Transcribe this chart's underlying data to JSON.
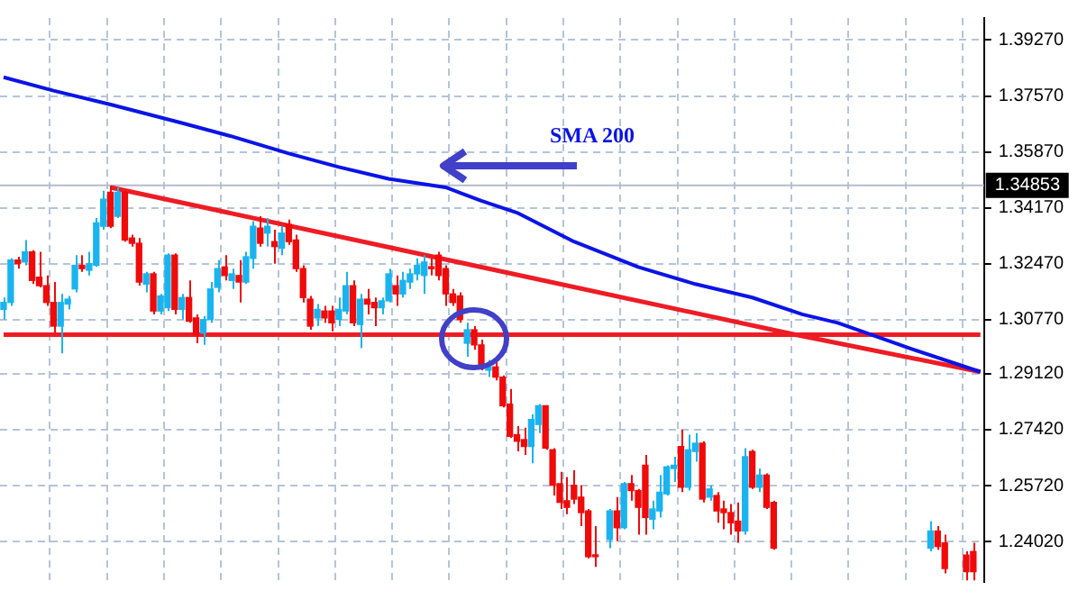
{
  "chart_data": {
    "type": "candlestick",
    "categories": [
      null,
      null,
      null,
      null,
      null,
      null,
      null,
      null,
      null,
      null,
      null,
      null,
      null,
      null,
      null,
      null,
      null,
      null,
      null,
      null,
      null,
      null,
      null,
      null,
      null,
      null,
      null,
      null,
      null,
      null,
      null,
      null,
      null,
      null,
      null,
      null,
      null,
      null,
      null,
      null,
      null,
      null,
      null,
      null,
      null,
      null,
      null,
      null,
      null,
      null,
      null,
      null,
      null,
      null,
      null,
      null,
      null,
      null,
      null,
      null,
      null,
      null,
      null,
      null,
      null,
      null,
      null,
      null,
      null,
      null,
      null,
      null,
      null,
      null,
      null,
      null,
      null,
      null,
      null,
      null,
      null,
      null,
      null,
      null,
      null,
      null,
      null,
      null,
      null,
      null,
      null,
      null,
      null,
      null,
      null,
      null,
      null,
      null,
      null,
      null,
      null,
      null,
      null,
      null,
      null,
      null,
      null,
      null,
      null,
      null,
      null,
      null,
      null,
      null,
      null,
      null,
      null,
      null,
      null,
      null,
      null,
      null,
      null,
      null,
      null,
      null,
      null,
      null,
      null,
      null,
      null,
      null,
      null,
      null,
      null,
      null,
      null,
      null
    ],
    "ohlc": [
      [
        1.3108,
        1.3144,
        1.3077,
        1.3129
      ],
      [
        1.3129,
        1.3263,
        1.3119,
        1.3258
      ],
      [
        1.3258,
        1.3268,
        1.3232,
        1.3247
      ],
      [
        1.3252,
        1.3319,
        1.3242,
        1.3283
      ],
      [
        1.3283,
        1.3288,
        1.3185,
        1.3196
      ],
      [
        1.3206,
        1.3283,
        1.3175,
        1.318
      ],
      [
        1.318,
        1.3211,
        1.3119,
        1.3129
      ],
      [
        1.3129,
        1.3191,
        1.3036,
        1.3057
      ],
      [
        1.3057,
        1.3155,
        1.2974,
        1.3129
      ],
      [
        1.3124,
        1.3149,
        1.3108,
        1.3139
      ],
      [
        1.317,
        1.3273,
        1.316,
        1.3242
      ],
      [
        1.3242,
        1.3273,
        1.3222,
        1.3232
      ],
      [
        1.3227,
        1.3283,
        1.3211,
        1.3247
      ],
      [
        1.3242,
        1.3386,
        1.3237,
        1.3371
      ],
      [
        1.3361,
        1.3469,
        1.335,
        1.3443
      ],
      [
        1.3464,
        1.3484,
        1.3355,
        1.3361
      ],
      [
        1.3391,
        1.3479,
        1.3386,
        1.3464
      ],
      [
        1.3464,
        1.3469,
        1.3314,
        1.3319
      ],
      [
        1.3325,
        1.3335,
        1.3299,
        1.3309
      ],
      [
        1.3309,
        1.3325,
        1.318,
        1.3191
      ],
      [
        1.3185,
        1.3222,
        1.316,
        1.3216
      ],
      [
        1.3216,
        1.3222,
        1.3093,
        1.3103
      ],
      [
        1.3103,
        1.3155,
        1.3093,
        1.3149
      ],
      [
        1.3113,
        1.3278,
        1.3103,
        1.3273
      ],
      [
        1.3273,
        1.3278,
        1.3093,
        1.3108
      ],
      [
        1.3108,
        1.3155,
        1.3077,
        1.3144
      ],
      [
        1.3144,
        1.3196,
        1.3067,
        1.3072
      ],
      [
        1.3082,
        1.3093,
        1.3005,
        1.3031
      ],
      [
        1.3036,
        1.3088,
        1.3,
        1.3077
      ],
      [
        1.3077,
        1.3191,
        1.3067,
        1.317
      ],
      [
        1.3175,
        1.3258,
        1.316,
        1.3232
      ],
      [
        1.3237,
        1.3273,
        1.3196,
        1.3211
      ],
      [
        1.3196,
        1.3232,
        1.317,
        1.3216
      ],
      [
        1.3211,
        1.3258,
        1.3129,
        1.3191
      ],
      [
        1.3191,
        1.3283,
        1.3185,
        1.3268
      ],
      [
        1.3263,
        1.3376,
        1.3232,
        1.3361
      ],
      [
        1.3355,
        1.3391,
        1.3299,
        1.3309
      ],
      [
        1.334,
        1.3386,
        1.3299,
        1.3361
      ],
      [
        1.3314,
        1.335,
        1.3247,
        1.3299
      ],
      [
        1.3294,
        1.3361,
        1.3273,
        1.334
      ],
      [
        1.3366,
        1.3381,
        1.3304,
        1.3314
      ],
      [
        1.3319,
        1.3335,
        1.3222,
        1.3232
      ],
      [
        1.3232,
        1.3242,
        1.3129,
        1.3144
      ],
      [
        1.3139,
        1.3149,
        1.3046,
        1.3057
      ],
      [
        1.3082,
        1.3124,
        1.3057,
        1.3108
      ],
      [
        1.3103,
        1.3119,
        1.3067,
        1.3082
      ],
      [
        1.3103,
        1.3119,
        1.3041,
        1.3067
      ],
      [
        1.3077,
        1.3144,
        1.3057,
        1.3108
      ],
      [
        1.3103,
        1.3222,
        1.3093,
        1.318
      ],
      [
        1.318,
        1.3196,
        1.3057,
        1.3067
      ],
      [
        1.3062,
        1.3155,
        1.299,
        1.3139
      ],
      [
        1.3139,
        1.317,
        1.3093,
        1.3124
      ],
      [
        1.3129,
        1.3144,
        1.3057,
        1.3113
      ],
      [
        1.3113,
        1.3144,
        1.3093,
        1.3134
      ],
      [
        1.3134,
        1.3232,
        1.3129,
        1.3216
      ],
      [
        1.318,
        1.3211,
        1.3119,
        1.3155
      ],
      [
        1.3155,
        1.3222,
        1.3144,
        1.3196
      ],
      [
        1.3191,
        1.3232,
        1.317,
        1.3216
      ],
      [
        1.3216,
        1.3263,
        1.3196,
        1.3242
      ],
      [
        1.3211,
        1.3273,
        1.3155,
        1.3252
      ],
      [
        1.3237,
        1.3263,
        1.3211,
        1.3232
      ],
      [
        1.3273,
        1.3283,
        1.3196,
        1.3211
      ],
      [
        1.3232,
        1.3242,
        1.3119,
        1.3155
      ],
      [
        1.3155,
        1.317,
        1.3119,
        1.3129
      ],
      [
        1.3149,
        1.316,
        1.3067,
        1.3077
      ],
      [
        1.3005,
        1.3067,
        1.2964,
        1.3046
      ],
      [
        1.3046,
        1.3057,
        1.2985,
        1.3
      ],
      [
        1.3,
        1.3016,
        1.2923,
        1.2928
      ],
      [
        1.2923,
        1.2954,
        1.2902,
        1.2933
      ],
      [
        1.2933,
        1.2954,
        1.2892,
        1.2902
      ],
      [
        1.2902,
        1.2907,
        1.281,
        1.2815
      ],
      [
        1.282,
        1.2866,
        1.2717,
        1.2722
      ],
      [
        1.2727,
        1.2753,
        1.2676,
        1.2707
      ],
      [
        1.2712,
        1.2748,
        1.2665,
        1.2691
      ],
      [
        1.2691,
        1.2789,
        1.264,
        1.2773
      ],
      [
        1.2758,
        1.282,
        1.2732,
        1.2815
      ],
      [
        1.2815,
        1.2815,
        1.2681,
        1.2686
      ],
      [
        1.2681,
        1.2686,
        1.2542,
        1.2573
      ],
      [
        1.2578,
        1.2614,
        1.2501,
        1.2521
      ],
      [
        1.2526,
        1.2598,
        1.2485,
        1.2506
      ],
      [
        1.2573,
        1.2619,
        1.2516,
        1.2531
      ],
      [
        1.2537,
        1.2573,
        1.2449,
        1.249
      ],
      [
        1.2495,
        1.2501,
        1.2351,
        1.2356
      ],
      [
        1.2361,
        1.2449,
        1.2325,
        1.2356
      ],
      null,
      [
        1.2408,
        1.2501,
        1.2382,
        1.2495
      ],
      [
        1.2495,
        1.2537,
        1.2403,
        1.2444
      ],
      [
        1.2444,
        1.2583,
        1.2439,
        1.2578
      ],
      [
        1.2578,
        1.2604,
        1.2526,
        1.2557
      ],
      [
        1.2557,
        1.2562,
        1.2423,
        1.2506
      ],
      [
        1.2634,
        1.2665,
        1.2423,
        1.2475
      ],
      [
        1.247,
        1.2526,
        1.2439,
        1.2501
      ],
      [
        1.2495,
        1.2604,
        1.2475,
        1.2552
      ],
      [
        1.2547,
        1.2634,
        1.2542,
        1.2629
      ],
      [
        1.2624,
        1.266,
        1.2583,
        1.2634
      ],
      [
        1.2691,
        1.2743,
        1.2552,
        1.2567
      ],
      [
        1.2567,
        1.2727,
        1.2557,
        1.2681
      ],
      [
        1.2676,
        1.2732,
        1.2645,
        1.2701
      ],
      [
        1.2701,
        1.2707,
        1.2521,
        1.2531
      ],
      [
        1.2537,
        1.2573,
        1.2526,
        1.2562
      ],
      [
        1.2542,
        1.2552,
        1.2459,
        1.2495
      ],
      [
        1.2501,
        1.2526,
        1.2439,
        1.249
      ],
      [
        1.249,
        1.2516,
        1.2423,
        1.2459
      ],
      [
        1.2464,
        1.2521,
        1.2398,
        1.2434
      ],
      [
        1.2434,
        1.2686,
        1.2423,
        1.266
      ],
      [
        1.2676,
        1.2681,
        1.2562,
        1.2567
      ],
      [
        1.2567,
        1.2624,
        1.2552,
        1.2604
      ],
      [
        1.2604,
        1.2609,
        1.2501,
        1.2506
      ],
      [
        1.2521,
        1.2526,
        1.2377,
        1.2382
      ],
      null,
      null,
      null,
      null,
      null,
      null,
      null,
      null,
      null,
      null,
      null,
      null,
      null,
      null,
      null,
      null,
      null,
      null,
      null,
      null,
      null,
      [
        1.2382,
        1.2464,
        1.2372,
        1.2434
      ],
      [
        1.2434,
        1.2449,
        1.2377,
        1.2387
      ],
      [
        1.2398,
        1.2423,
        1.2305,
        1.232
      ],
      null,
      null,
      [
        1.2361,
        1.2372,
        1.2284,
        1.231
      ],
      [
        1.2372,
        1.2398,
        1.2284,
        1.231
      ],
      null
    ],
    "series": [
      {
        "name": "SMA 200",
        "type": "line",
        "color": "#0a14e6",
        "values": [
          1.3814,
          null,
          null,
          null,
          null,
          null,
          null,
          1.3773,
          null,
          null,
          null,
          null,
          null,
          null,
          null,
          1.3731,
          null,
          null,
          null,
          null,
          null,
          null,
          null,
          null,
          null,
          1.3675,
          null,
          null,
          null,
          null,
          null,
          null,
          1.3634,
          null,
          null,
          null,
          null,
          null,
          null,
          null,
          1.3582,
          null,
          null,
          null,
          null,
          null,
          null,
          1.3541,
          null,
          null,
          null,
          null,
          null,
          null,
          1.3505,
          null,
          null,
          null,
          null,
          null,
          null,
          null,
          1.3479,
          null,
          null,
          null,
          null,
          1.3438,
          null,
          null,
          null,
          null,
          1.3402,
          null,
          null,
          null,
          null,
          null,
          null,
          null,
          1.3314,
          null,
          null,
          null,
          null,
          null,
          null,
          null,
          null,
          1.3237,
          null,
          null,
          null,
          null,
          null,
          null,
          null,
          1.3185,
          null,
          null,
          null,
          null,
          null,
          null,
          null,
          1.3144,
          null,
          null,
          null,
          null,
          null,
          null,
          1.3093,
          null,
          null,
          null,
          null,
          1.3067,
          null,
          null,
          null,
          null,
          null,
          null,
          null,
          null,
          null,
          1.299,
          null,
          null,
          null,
          null,
          null,
          null,
          null,
          null,
          null,
          1.2918
        ]
      },
      {
        "type": "line",
        "color": "#ee1c24",
        "values": [
          null,
          null,
          null,
          null,
          null,
          null,
          null,
          null,
          null,
          null,
          null,
          null,
          null,
          null,
          null,
          1.3479,
          null,
          null,
          null,
          null,
          null,
          null,
          null,
          null,
          null,
          null,
          null,
          null,
          null,
          null,
          null,
          null,
          null,
          null,
          null,
          null,
          null,
          null,
          null,
          null,
          null,
          null,
          null,
          null,
          null,
          null,
          null,
          null,
          null,
          null,
          null,
          null,
          null,
          null,
          null,
          null,
          null,
          null,
          null,
          null,
          null,
          null,
          null,
          null,
          null,
          null,
          null,
          null,
          null,
          null,
          null,
          null,
          null,
          null,
          null,
          null,
          null,
          null,
          null,
          null,
          null,
          null,
          null,
          null,
          null,
          null,
          null,
          null,
          null,
          null,
          null,
          null,
          null,
          null,
          null,
          null,
          null,
          null,
          null,
          null,
          null,
          null,
          null,
          null,
          null,
          null,
          null,
          null,
          null,
          null,
          1.3036,
          null,
          null,
          null,
          null,
          null,
          null,
          null,
          null,
          null,
          null,
          null,
          null,
          null,
          null,
          null,
          null,
          null,
          null,
          null,
          null,
          null,
          null,
          null,
          null,
          null,
          null,
          1.2918
        ]
      },
      {
        "type": "line",
        "color": "#ee1c24",
        "values": [
          1.3031,
          null,
          null,
          null,
          null,
          null,
          null,
          null,
          null,
          null,
          null,
          null,
          null,
          null,
          null,
          null,
          null,
          null,
          null,
          null,
          null,
          null,
          null,
          null,
          null,
          null,
          null,
          null,
          null,
          null,
          null,
          null,
          null,
          null,
          null,
          null,
          null,
          null,
          null,
          null,
          null,
          null,
          null,
          null,
          null,
          null,
          null,
          null,
          null,
          null,
          null,
          null,
          null,
          null,
          null,
          null,
          null,
          null,
          null,
          null,
          null,
          null,
          null,
          null,
          null,
          null,
          null,
          null,
          null,
          null,
          null,
          null,
          null,
          null,
          null,
          null,
          null,
          null,
          null,
          null,
          null,
          null,
          null,
          null,
          null,
          null,
          null,
          null,
          null,
          null,
          null,
          null,
          null,
          null,
          null,
          null,
          null,
          null,
          null,
          null,
          null,
          null,
          null,
          null,
          null,
          null,
          null,
          null,
          null,
          null,
          null,
          null,
          null,
          null,
          null,
          null,
          null,
          null,
          null,
          null,
          null,
          null,
          null,
          null,
          null,
          null,
          null,
          null,
          null,
          null,
          null,
          null,
          null,
          null,
          null,
          null,
          null,
          1.3031
        ]
      }
    ],
    "ylim": [
      1.2279,
      1.3994
    ],
    "yticks": [
      {
        "value": 1.3927,
        "label": "1.39270"
      },
      {
        "value": 1.3757,
        "label": "1.37570"
      },
      {
        "value": 1.3587,
        "label": "1.35870"
      },
      {
        "value": 1.3417,
        "label": "1.34170"
      },
      {
        "value": 1.3247,
        "label": "1.32470"
      },
      {
        "value": 1.3077,
        "label": "1.30770"
      },
      {
        "value": 1.2912,
        "label": "1.29120"
      },
      {
        "value": 1.2742,
        "label": "1.27420"
      },
      {
        "value": 1.2572,
        "label": "1.25720"
      },
      {
        "value": 1.2402,
        "label": "1.24020"
      }
    ],
    "ref_lines": [
      {
        "axis": "y",
        "value": 1.34853,
        "label": "1.34853",
        "color": "#b4bccc"
      }
    ],
    "grid": true,
    "legend": false,
    "tick_labels": "y",
    "marker": "none"
  }
}
